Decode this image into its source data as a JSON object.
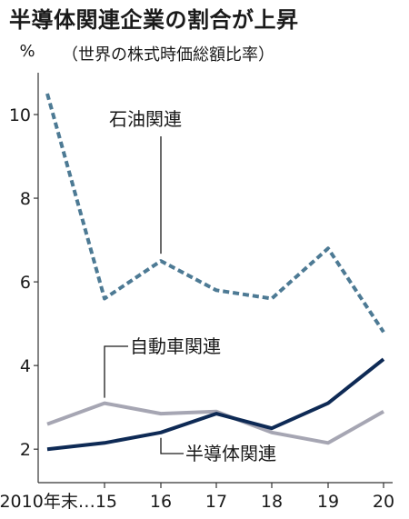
{
  "chart_data": {
    "type": "line",
    "title": "半導体関連企業の割合が上昇",
    "subtitle": "（世界の株式時価総額比率）",
    "unit_label": "%",
    "categories": [
      "2010年末…15",
      "16",
      "17",
      "18",
      "19",
      "20"
    ],
    "x": [
      "2010",
      "2015",
      "2016",
      "2017",
      "2018",
      "2019",
      "2020"
    ],
    "y_ticks": [
      2,
      4,
      6,
      8,
      10
    ],
    "ylim": [
      1.2,
      11
    ],
    "grid": false,
    "series": [
      {
        "name": "石油関連",
        "style": "dashed",
        "color": "#4d7a94",
        "values": [
          10.5,
          5.6,
          6.5,
          5.8,
          5.6,
          6.8,
          4.8
        ]
      },
      {
        "name": "自動車関連",
        "style": "solid",
        "color": "#a6a6b3",
        "values": [
          2.6,
          3.1,
          2.85,
          2.9,
          2.4,
          2.15,
          2.9
        ]
      },
      {
        "name": "半導体関連",
        "style": "solid",
        "color": "#0e2a55",
        "values": [
          2.0,
          2.15,
          2.4,
          2.85,
          2.5,
          3.1,
          4.15
        ]
      }
    ]
  }
}
